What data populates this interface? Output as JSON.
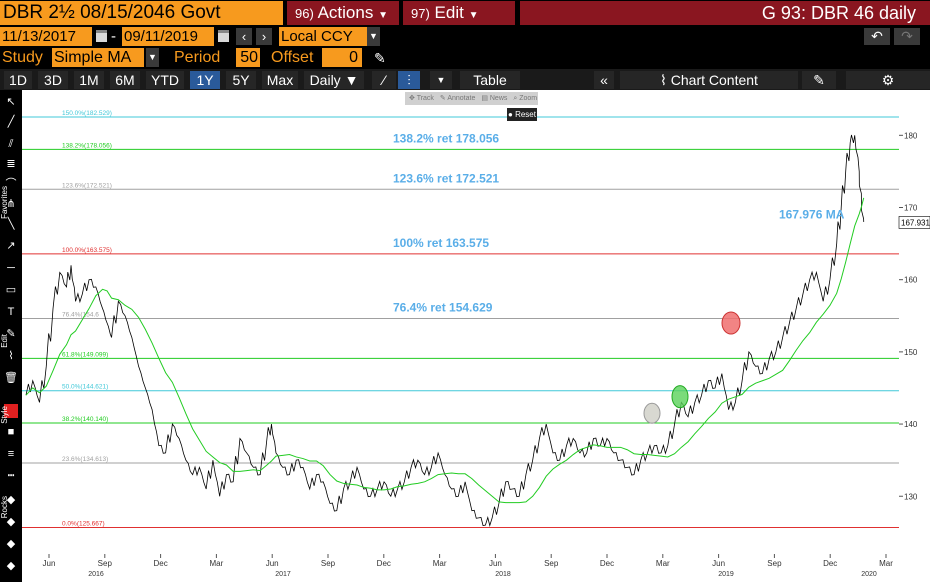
{
  "header": {
    "security": "DBR 2½ 08/15/2046 Govt",
    "actions_num": "96)",
    "actions_label": "Actions",
    "edit_num": "97)",
    "edit_label": "Edit",
    "title": "G 93: DBR 46 daily"
  },
  "dates": {
    "start": "11/13/2017",
    "separator": "-",
    "end": "09/11/2019",
    "currency": "Local CCY"
  },
  "study": {
    "label": "Study",
    "value": "Simple MA",
    "period_label": "Period",
    "period_value": "50",
    "offset_label": "Offset",
    "offset_value": "0"
  },
  "timeframes": [
    "1D",
    "3D",
    "1M",
    "6M",
    "YTD",
    "1Y",
    "5Y",
    "Max"
  ],
  "selected_timeframe": "1Y",
  "frequency": "Daily ▼",
  "table_label": "Table",
  "chart_content_label": "Chart Content",
  "chart_toolbar": [
    "Track",
    "Annotate",
    "News",
    "Zoom"
  ],
  "reset_label": "Reset",
  "side_labels": [
    "Favorites",
    "Edit",
    "Style",
    "Rocks"
  ],
  "colors": {
    "accent_orange": "#f79a1e",
    "header_red": "#8a1620",
    "selected_blue": "#2a5a9a",
    "annotation_blue": "#5aaee8",
    "ma_green": "#22cc22"
  },
  "chart_data": {
    "type": "line",
    "ylim": [
      122,
      186
    ],
    "y_ticks": [
      130,
      140,
      150,
      160,
      170,
      180
    ],
    "last_price_label": "167.931",
    "ma_label": "167.976 MA",
    "x_month_labels": [
      "Jun",
      "Sep",
      "Dec",
      "Mar",
      "Jun",
      "Sep",
      "Dec",
      "Mar",
      "Jun",
      "Sep",
      "Dec",
      "Mar",
      "Jun",
      "Sep",
      "Dec",
      "Mar"
    ],
    "x_year_labels": [
      "2016",
      "2017",
      "2018",
      "2019",
      "2020"
    ],
    "fib_levels": [
      {
        "label": "0.0%(125.667)",
        "value": 125.667,
        "color": "#e03030"
      },
      {
        "label": "23.6%(134.613)",
        "value": 134.613,
        "color": "#a0a0a0"
      },
      {
        "label": "38.2%(140.140)",
        "value": 140.14,
        "color": "#22cc22"
      },
      {
        "label": "50.0%(144.621)",
        "value": 144.621,
        "color": "#40c8d8"
      },
      {
        "label": "61.8%(149.099)",
        "value": 149.099,
        "color": "#22cc22"
      },
      {
        "label": "76.4%(154.6",
        "value": 154.629,
        "color": "#a0a0a0"
      },
      {
        "label": "100.0%(163.575)",
        "value": 163.575,
        "color": "#e03030"
      },
      {
        "label": "123.6%(172.521)",
        "value": 172.521,
        "color": "#a0a0a0"
      },
      {
        "label": "138.2%(178.056)",
        "value": 178.056,
        "color": "#22cc22"
      },
      {
        "label": "150.0%(182.529)",
        "value": 182.529,
        "color": "#40c8d8"
      }
    ],
    "retracement_annotations": [
      {
        "text": "138.2% ret 178.056",
        "value": 178.056
      },
      {
        "text": "123.6% ret 172.521",
        "value": 172.521
      },
      {
        "text": "100% ret 163.575",
        "value": 163.575
      },
      {
        "text": "76.4% ret 154.629",
        "value": 154.629
      }
    ],
    "price_series_x": [
      0,
      6,
      12,
      18,
      24,
      30,
      36,
      40,
      44,
      50,
      56,
      62,
      68,
      72,
      76,
      82,
      88,
      94,
      100,
      106,
      112,
      118,
      124,
      130,
      136,
      142,
      148,
      154,
      160,
      166,
      172,
      178,
      184,
      190,
      196,
      202,
      208,
      214,
      218,
      222,
      228,
      234,
      240,
      246,
      252,
      258,
      264,
      270,
      276,
      282,
      288,
      294,
      300,
      306,
      312,
      318,
      324,
      330,
      336,
      342,
      348,
      354,
      360,
      366,
      372,
      378,
      384,
      390,
      396,
      402,
      408,
      414,
      420,
      426,
      432,
      438,
      444,
      450,
      456,
      462,
      468,
      474,
      480,
      486,
      492,
      498,
      504,
      510,
      516,
      522,
      528,
      534,
      540,
      546,
      552,
      558,
      564,
      570,
      576,
      582,
      588,
      594,
      600,
      606,
      612,
      618,
      624,
      630,
      636,
      642,
      648,
      654,
      660,
      666,
      672,
      678,
      684,
      690,
      696,
      702,
      708,
      714,
      720,
      724,
      728,
      732,
      736,
      740,
      742,
      744
    ],
    "price_series": [
      144,
      146,
      143,
      148,
      156,
      161,
      159,
      162,
      157,
      158,
      160,
      159,
      156,
      154,
      152,
      157,
      155,
      152,
      148,
      145,
      142,
      137,
      136,
      140,
      138,
      135,
      133,
      134,
      131,
      135,
      130,
      133,
      132,
      138,
      136,
      134,
      133,
      138,
      140,
      136,
      134,
      133,
      135,
      134,
      131,
      133,
      132,
      129,
      128,
      131,
      132,
      134,
      131,
      130,
      131,
      132,
      130,
      131,
      132,
      134,
      135,
      133,
      134,
      136,
      133,
      131,
      130,
      132,
      128,
      127,
      126,
      127,
      129,
      132,
      131,
      130,
      133,
      135,
      138,
      140,
      136,
      135,
      137,
      138,
      136,
      136,
      138,
      137,
      138,
      136,
      135,
      134,
      133,
      135,
      136,
      137,
      136,
      137,
      140,
      143,
      141,
      143,
      144,
      146,
      145,
      147,
      142,
      143,
      146,
      150,
      148,
      147,
      149,
      150,
      152,
      154,
      156,
      158,
      160,
      161,
      157,
      160,
      165,
      170,
      175,
      179,
      180,
      175,
      170,
      168
    ]
  }
}
